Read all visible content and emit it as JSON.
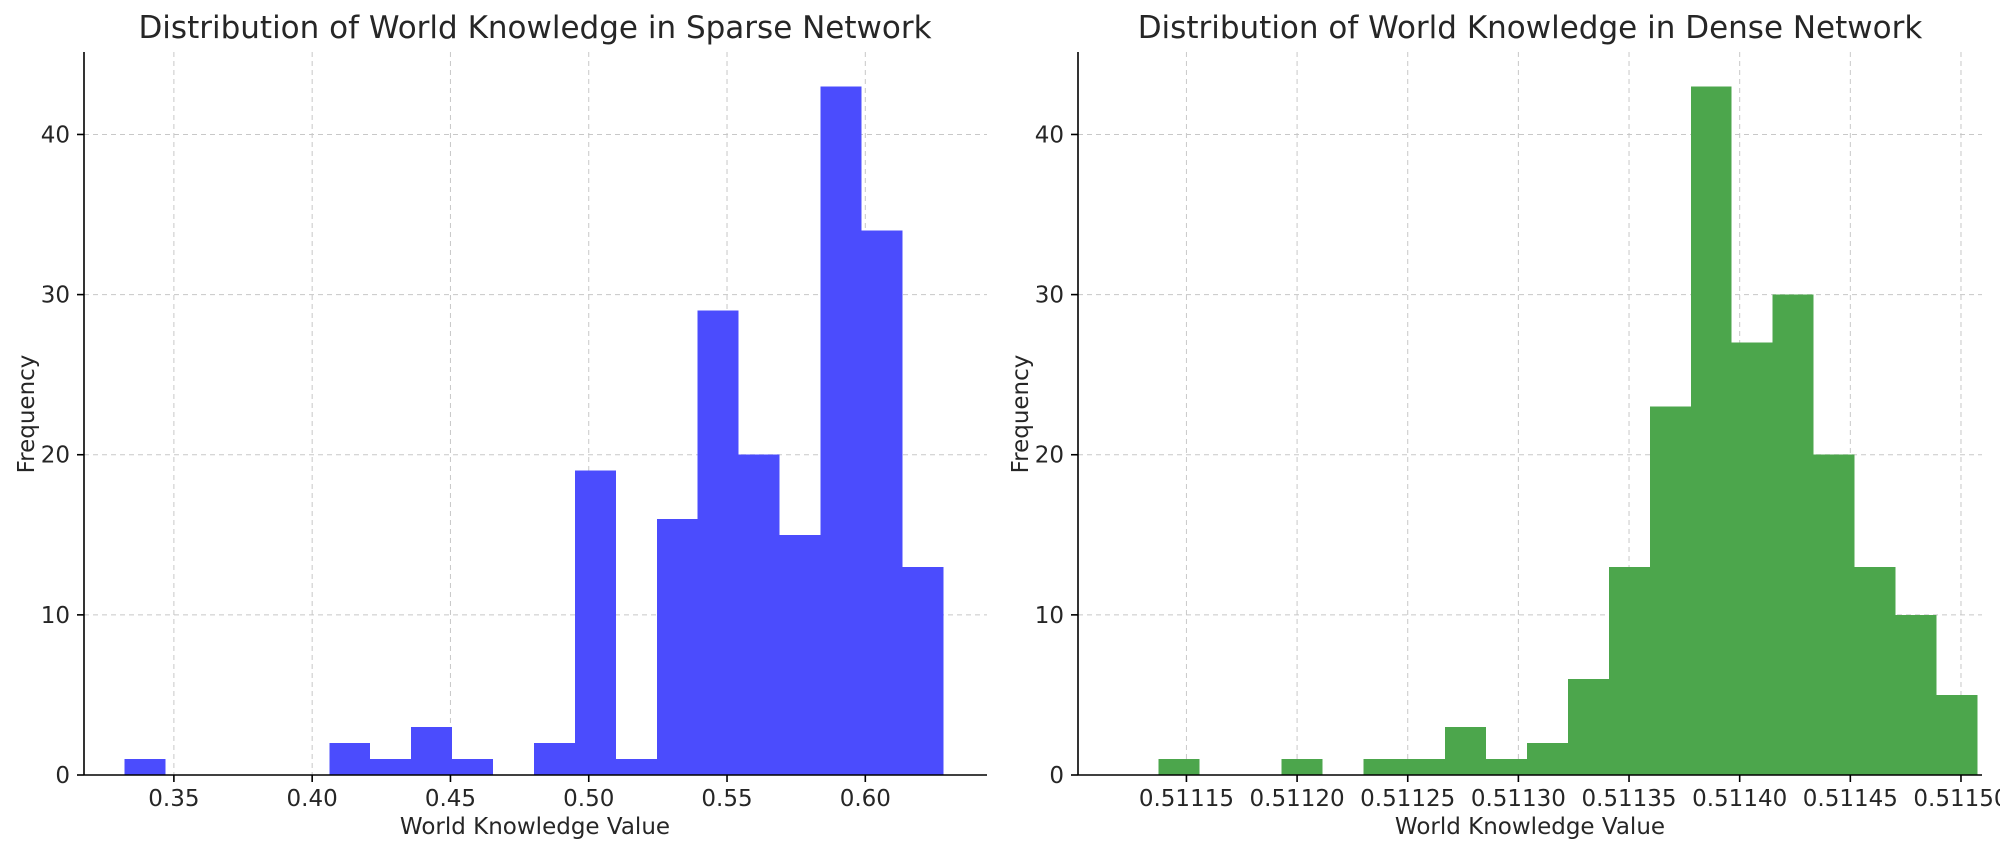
{
  "chart_data": [
    {
      "type": "bar",
      "title": "Distribution of World Knowledge in Sparse Network",
      "xlabel": "World Knowledge Value",
      "ylabel": "Frequency",
      "color": "#4b4cfd",
      "grid": true,
      "xlim": [
        0.3175,
        0.644
      ],
      "ylim": [
        0,
        45.15
      ],
      "xticks": [
        0.35,
        0.4,
        0.45,
        0.5,
        0.55,
        0.6
      ],
      "xtick_labels": [
        "0.35",
        "0.40",
        "0.45",
        "0.50",
        "0.55",
        "0.60"
      ],
      "yticks": [
        0,
        10,
        20,
        30,
        40
      ],
      "ytick_labels": [
        "0",
        "10",
        "20",
        "30",
        "40"
      ],
      "bins": [
        {
          "x0": 0.3322,
          "x1": 0.347,
          "value": 1
        },
        {
          "x0": 0.347,
          "x1": 0.3618,
          "value": 0
        },
        {
          "x0": 0.3618,
          "x1": 0.3766,
          "value": 0
        },
        {
          "x0": 0.3766,
          "x1": 0.3914,
          "value": 0
        },
        {
          "x0": 0.3914,
          "x1": 0.4062,
          "value": 0
        },
        {
          "x0": 0.4062,
          "x1": 0.421,
          "value": 2
        },
        {
          "x0": 0.421,
          "x1": 0.4358,
          "value": 1
        },
        {
          "x0": 0.4358,
          "x1": 0.4506,
          "value": 3
        },
        {
          "x0": 0.4506,
          "x1": 0.4654,
          "value": 1
        },
        {
          "x0": 0.4654,
          "x1": 0.4802,
          "value": 0
        },
        {
          "x0": 0.4802,
          "x1": 0.495,
          "value": 2
        },
        {
          "x0": 0.495,
          "x1": 0.5098,
          "value": 19
        },
        {
          "x0": 0.5098,
          "x1": 0.5246,
          "value": 1
        },
        {
          "x0": 0.5246,
          "x1": 0.5394,
          "value": 16
        },
        {
          "x0": 0.5394,
          "x1": 0.5542,
          "value": 29
        },
        {
          "x0": 0.5542,
          "x1": 0.569,
          "value": 20
        },
        {
          "x0": 0.569,
          "x1": 0.5838,
          "value": 15
        },
        {
          "x0": 0.5838,
          "x1": 0.5986,
          "value": 43
        },
        {
          "x0": 0.5986,
          "x1": 0.6134,
          "value": 34
        },
        {
          "x0": 0.6134,
          "x1": 0.6282,
          "value": 13
        }
      ]
    },
    {
      "type": "bar",
      "title": "Distribution of World Knowledge in Dense Network",
      "xlabel": "World Knowledge Value",
      "ylabel": "Frequency",
      "color": "#4ca64c",
      "grid": true,
      "xlim": [
        0.511101,
        0.5115095
      ],
      "ylim": [
        0,
        45.15
      ],
      "xticks": [
        0.51115,
        0.5112,
        0.51125,
        0.5113,
        0.51135,
        0.5114,
        0.51145,
        0.5115
      ],
      "xtick_labels": [
        "0.51115",
        "0.51120",
        "0.51125",
        "0.51130",
        "0.51135",
        "0.51140",
        "0.51145",
        "0.51150"
      ],
      "yticks": [
        0,
        10,
        20,
        30,
        40
      ],
      "ytick_labels": [
        "0",
        "10",
        "20",
        "30",
        "40"
      ],
      "bins": [
        {
          "x0": 0.5111374,
          "x1": 0.5111559,
          "value": 1
        },
        {
          "x0": 0.5111559,
          "x1": 0.5111744,
          "value": 0
        },
        {
          "x0": 0.5111744,
          "x1": 0.5111929,
          "value": 0
        },
        {
          "x0": 0.5111929,
          "x1": 0.5112114,
          "value": 1
        },
        {
          "x0": 0.5112114,
          "x1": 0.5112299,
          "value": 0
        },
        {
          "x0": 0.5112299,
          "x1": 0.5112484,
          "value": 1
        },
        {
          "x0": 0.5112484,
          "x1": 0.5112669,
          "value": 1
        },
        {
          "x0": 0.5112669,
          "x1": 0.5112854,
          "value": 3
        },
        {
          "x0": 0.5112854,
          "x1": 0.5113039,
          "value": 1
        },
        {
          "x0": 0.5113039,
          "x1": 0.5113224,
          "value": 2
        },
        {
          "x0": 0.5113224,
          "x1": 0.5113409,
          "value": 6
        },
        {
          "x0": 0.5113409,
          "x1": 0.5113594,
          "value": 13
        },
        {
          "x0": 0.5113594,
          "x1": 0.5113779,
          "value": 23
        },
        {
          "x0": 0.5113779,
          "x1": 0.5113964,
          "value": 43
        },
        {
          "x0": 0.5113964,
          "x1": 0.5114149,
          "value": 27
        },
        {
          "x0": 0.5114149,
          "x1": 0.5114334,
          "value": 30
        },
        {
          "x0": 0.5114334,
          "x1": 0.5114519,
          "value": 20
        },
        {
          "x0": 0.5114519,
          "x1": 0.5114704,
          "value": 13
        },
        {
          "x0": 0.5114704,
          "x1": 0.5114889,
          "value": 10
        },
        {
          "x0": 0.5114889,
          "x1": 0.5115074,
          "value": 5
        }
      ]
    }
  ]
}
